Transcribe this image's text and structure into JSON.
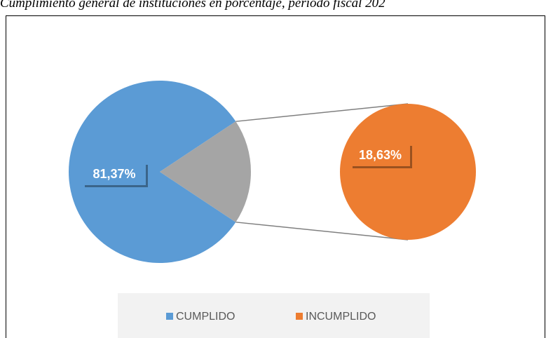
{
  "chart_data": {
    "type": "pie-of-pie",
    "title": "Cumplimiento general de instituciones en porcentaje, período fiscal 202",
    "categories": [
      "CUMPLIDO",
      "INCUMPLIDO"
    ],
    "values": [
      81.37,
      18.63
    ],
    "value_labels": [
      "81,37%",
      "18,63%"
    ],
    "colors": [
      "#5b9bd5",
      "#ed7d31"
    ],
    "other_color": "#a5a5a5",
    "legend": "bottom"
  }
}
